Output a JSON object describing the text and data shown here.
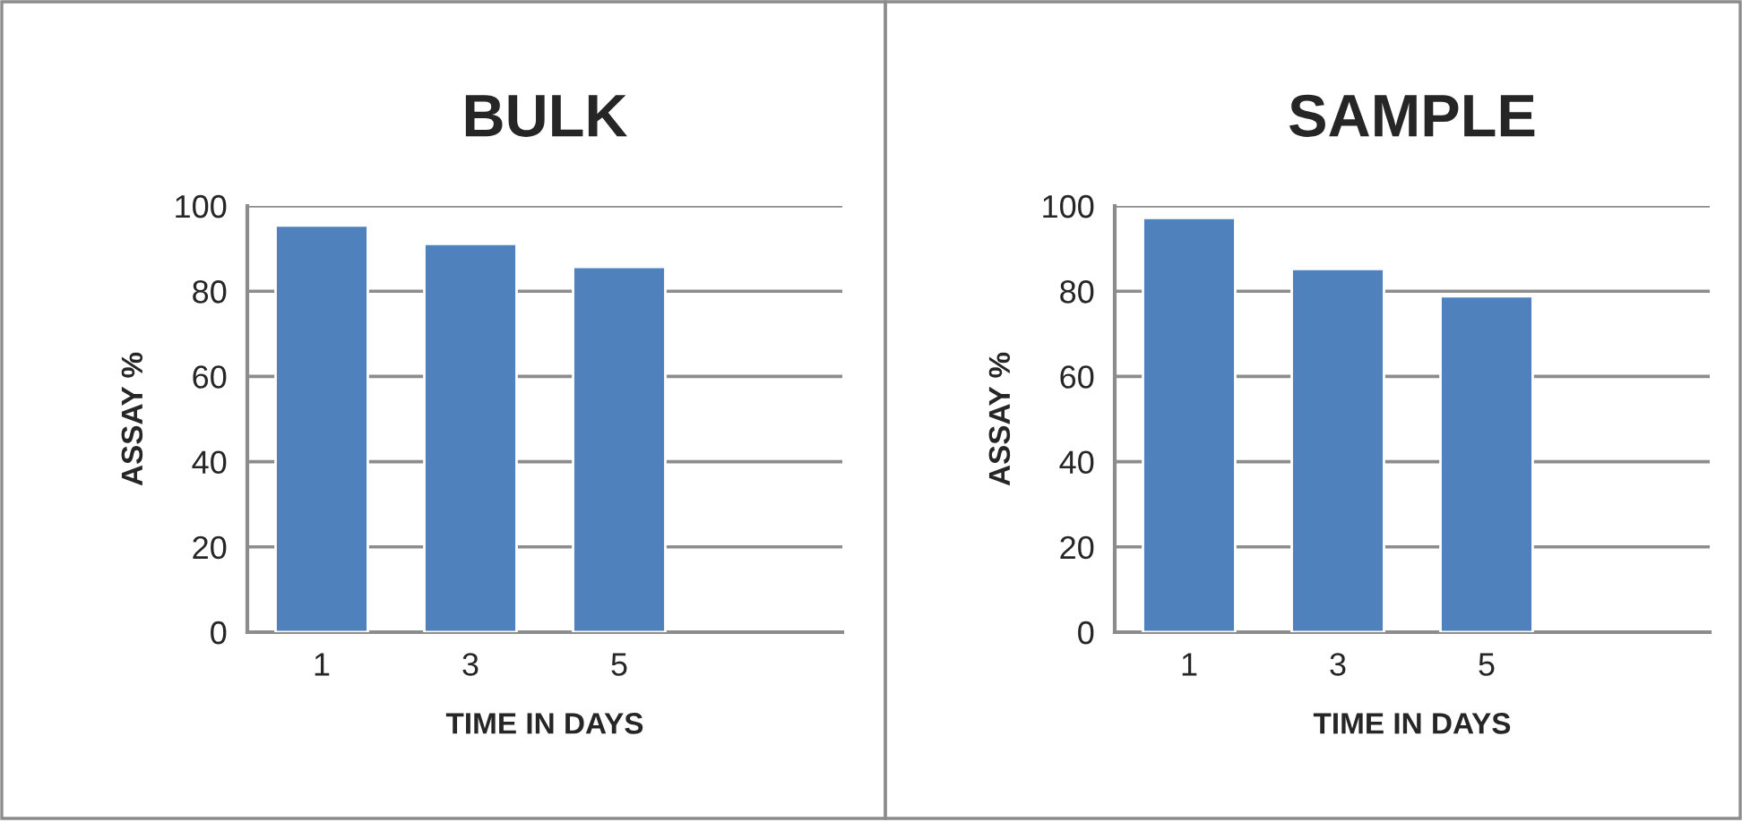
{
  "chart_data": [
    {
      "type": "bar",
      "title": "BULK",
      "xlabel": "TIME IN DAYS",
      "ylabel": "ASSAY %",
      "categories": [
        "1",
        "3",
        "5",
        null
      ],
      "values": [
        95.4,
        91.1,
        85.7,
        null
      ],
      "color": "#4f81bd",
      "ylim": [
        0,
        100
      ],
      "yticks": [
        0,
        20,
        40,
        60,
        80,
        100
      ],
      "grid": "y"
    },
    {
      "type": "bar",
      "title": "SAMPLE",
      "xlabel": "TIME IN DAYS",
      "ylabel": "ASSAY %",
      "categories": [
        "1",
        "3",
        "5",
        null
      ],
      "values": [
        97.2,
        85.2,
        78.8,
        null
      ],
      "color": "#4f81bd",
      "ylim": [
        0,
        100
      ],
      "yticks": [
        0,
        20,
        40,
        60,
        80,
        100
      ],
      "grid": "y"
    }
  ]
}
